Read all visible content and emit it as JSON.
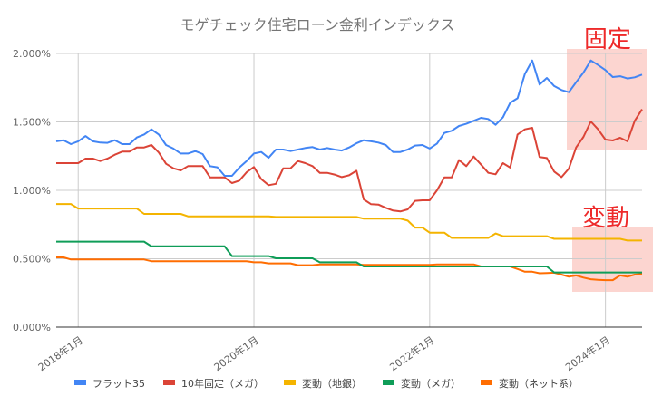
{
  "chart_data": {
    "type": "line",
    "title": "モゲチェック住宅ローン金利インデックス",
    "xlabel": "",
    "ylabel": "",
    "x_start": "2017-10",
    "x_end": "2024-06",
    "x_step": "month",
    "x_ticks": [
      {
        "month_index": 3,
        "label": "2018年1月"
      },
      {
        "month_index": 27,
        "label": "2020年1月"
      },
      {
        "month_index": 51,
        "label": "2022年1月"
      },
      {
        "month_index": 75,
        "label": "2024年1月"
      }
    ],
    "y_ticks": [
      {
        "value": 0,
        "label": "0.000%"
      },
      {
        "value": 0.5,
        "label": "0.500%"
      },
      {
        "value": 1.0,
        "label": "1.000%"
      },
      {
        "value": 1.5,
        "label": "1.500%"
      },
      {
        "value": 2.0,
        "label": "2.000%"
      }
    ],
    "ylim": [
      0,
      2.0
    ],
    "grid": true,
    "legend_position": "bottom",
    "series": [
      {
        "name": "フラット35",
        "color": "#4285f4",
        "values": [
          1.358,
          1.366,
          1.338,
          1.358,
          1.397,
          1.358,
          1.349,
          1.347,
          1.366,
          1.338,
          1.338,
          1.386,
          1.408,
          1.446,
          1.408,
          1.331,
          1.305,
          1.269,
          1.269,
          1.287,
          1.265,
          1.177,
          1.168,
          1.106,
          1.106,
          1.166,
          1.214,
          1.269,
          1.28,
          1.238,
          1.298,
          1.298,
          1.287,
          1.298,
          1.309,
          1.316,
          1.298,
          1.309,
          1.298,
          1.291,
          1.313,
          1.344,
          1.366,
          1.358,
          1.349,
          1.331,
          1.28,
          1.28,
          1.298,
          1.327,
          1.331,
          1.305,
          1.342,
          1.419,
          1.435,
          1.47,
          1.486,
          1.508,
          1.53,
          1.521,
          1.479,
          1.534,
          1.64,
          1.673,
          1.85,
          1.949,
          1.773,
          1.821,
          1.762,
          1.733,
          1.717,
          1.79,
          1.861,
          1.949,
          1.916,
          1.879,
          1.828,
          1.834,
          1.817,
          1.826,
          1.846
        ]
      },
      {
        "name": "10年固定（メガ）",
        "color": "#db4437",
        "values": [
          1.199,
          1.199,
          1.199,
          1.199,
          1.232,
          1.232,
          1.214,
          1.232,
          1.26,
          1.283,
          1.283,
          1.313,
          1.313,
          1.331,
          1.276,
          1.194,
          1.161,
          1.146,
          1.177,
          1.177,
          1.177,
          1.095,
          1.095,
          1.095,
          1.053,
          1.071,
          1.132,
          1.17,
          1.082,
          1.038,
          1.048,
          1.161,
          1.161,
          1.214,
          1.199,
          1.177,
          1.128,
          1.128,
          1.115,
          1.097,
          1.11,
          1.143,
          0.934,
          0.899,
          0.896,
          0.872,
          0.852,
          0.846,
          0.861,
          0.923,
          0.927,
          0.927,
          1.0,
          1.095,
          1.095,
          1.221,
          1.177,
          1.247,
          1.188,
          1.128,
          1.117,
          1.199,
          1.166,
          1.408,
          1.446,
          1.457,
          1.243,
          1.236,
          1.137,
          1.097,
          1.159,
          1.313,
          1.391,
          1.503,
          1.446,
          1.371,
          1.364,
          1.384,
          1.358,
          1.508,
          1.592
        ]
      },
      {
        "name": "変動（地銀）",
        "color": "#f4b400",
        "values": [
          0.9,
          0.9,
          0.9,
          0.867,
          0.867,
          0.867,
          0.867,
          0.867,
          0.867,
          0.867,
          0.867,
          0.867,
          0.828,
          0.828,
          0.828,
          0.828,
          0.828,
          0.828,
          0.81,
          0.81,
          0.81,
          0.81,
          0.81,
          0.81,
          0.81,
          0.81,
          0.81,
          0.81,
          0.81,
          0.81,
          0.805,
          0.805,
          0.805,
          0.805,
          0.805,
          0.805,
          0.805,
          0.805,
          0.805,
          0.805,
          0.805,
          0.805,
          0.793,
          0.793,
          0.793,
          0.793,
          0.793,
          0.793,
          0.779,
          0.728,
          0.728,
          0.691,
          0.691,
          0.691,
          0.652,
          0.652,
          0.652,
          0.652,
          0.652,
          0.652,
          0.685,
          0.665,
          0.665,
          0.665,
          0.665,
          0.665,
          0.665,
          0.665,
          0.646,
          0.646,
          0.646,
          0.646,
          0.646,
          0.646,
          0.646,
          0.646,
          0.646,
          0.646,
          0.633,
          0.633,
          0.633
        ]
      },
      {
        "name": "変動（メガ）",
        "color": "#0f9d58",
        "values": [
          0.625,
          0.625,
          0.625,
          0.625,
          0.625,
          0.625,
          0.625,
          0.625,
          0.625,
          0.625,
          0.625,
          0.625,
          0.625,
          0.591,
          0.591,
          0.591,
          0.591,
          0.591,
          0.591,
          0.591,
          0.591,
          0.591,
          0.591,
          0.591,
          0.519,
          0.519,
          0.519,
          0.519,
          0.519,
          0.519,
          0.503,
          0.503,
          0.503,
          0.503,
          0.503,
          0.503,
          0.474,
          0.474,
          0.474,
          0.474,
          0.474,
          0.474,
          0.444,
          0.444,
          0.444,
          0.444,
          0.444,
          0.444,
          0.444,
          0.444,
          0.444,
          0.444,
          0.444,
          0.444,
          0.444,
          0.444,
          0.444,
          0.444,
          0.444,
          0.444,
          0.444,
          0.444,
          0.444,
          0.444,
          0.444,
          0.444,
          0.444,
          0.444,
          0.4,
          0.4,
          0.4,
          0.4,
          0.4,
          0.4,
          0.4,
          0.4,
          0.4,
          0.4,
          0.4,
          0.4,
          0.4
        ]
      },
      {
        "name": "変動（ネット系）",
        "color": "#ff6d01",
        "values": [
          0.51,
          0.51,
          0.495,
          0.495,
          0.495,
          0.495,
          0.495,
          0.495,
          0.495,
          0.495,
          0.495,
          0.495,
          0.495,
          0.482,
          0.482,
          0.482,
          0.482,
          0.482,
          0.482,
          0.482,
          0.482,
          0.482,
          0.482,
          0.482,
          0.482,
          0.482,
          0.482,
          0.474,
          0.474,
          0.466,
          0.466,
          0.466,
          0.466,
          0.453,
          0.453,
          0.453,
          0.459,
          0.459,
          0.459,
          0.459,
          0.459,
          0.459,
          0.455,
          0.455,
          0.455,
          0.455,
          0.455,
          0.455,
          0.455,
          0.455,
          0.455,
          0.455,
          0.459,
          0.459,
          0.459,
          0.459,
          0.459,
          0.459,
          0.444,
          0.444,
          0.444,
          0.444,
          0.444,
          0.425,
          0.405,
          0.405,
          0.394,
          0.396,
          0.398,
          0.384,
          0.369,
          0.378,
          0.362,
          0.35,
          0.346,
          0.344,
          0.344,
          0.378,
          0.369,
          0.384,
          0.389
        ]
      }
    ],
    "annotations": [
      {
        "text": "固定",
        "highlights": "fixed-rate series, recent months",
        "box_color": "#fcd5d0"
      },
      {
        "text": "変動",
        "highlights": "variable-rate series, recent months",
        "box_color": "#fcd5d0"
      }
    ]
  }
}
